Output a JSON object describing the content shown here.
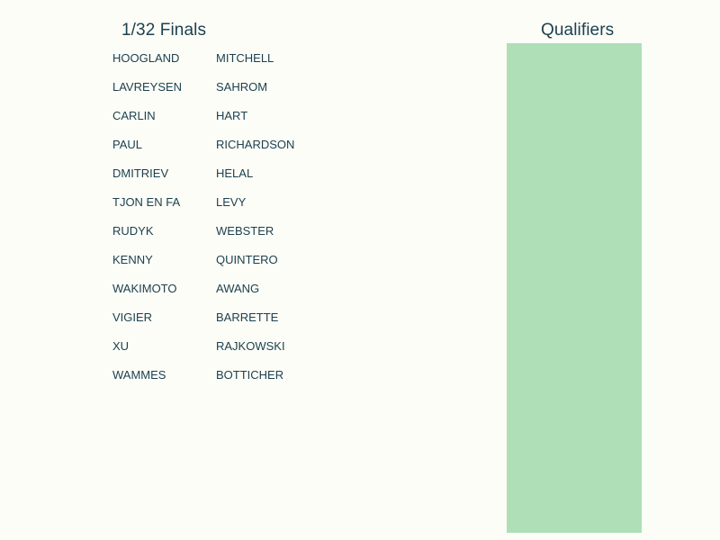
{
  "finals": {
    "title": "1/32 Finals",
    "matchups": [
      {
        "left": "HOOGLAND",
        "right": "MITCHELL"
      },
      {
        "left": "LAVREYSEN",
        "right": "SAHROM"
      },
      {
        "left": "CARLIN",
        "right": "HART"
      },
      {
        "left": "PAUL",
        "right": "RICHARDSON"
      },
      {
        "left": "DMITRIEV",
        "right": "HELAL"
      },
      {
        "left": "TJON EN FA",
        "right": "LEVY"
      },
      {
        "left": "RUDYK",
        "right": "WEBSTER"
      },
      {
        "left": "KENNY",
        "right": "QUINTERO"
      },
      {
        "left": "WAKIMOTO",
        "right": "AWANG"
      },
      {
        "left": "VIGIER",
        "right": "BARRETTE"
      },
      {
        "left": "XU",
        "right": "RAJKOWSKI"
      },
      {
        "left": "WAMMES",
        "right": "BOTTICHER"
      }
    ]
  },
  "qualifiers": {
    "title": "Qualifiers",
    "color": "#aedfb6"
  },
  "colors": {
    "background": "#fdfdf7",
    "text": "#1b4150"
  }
}
